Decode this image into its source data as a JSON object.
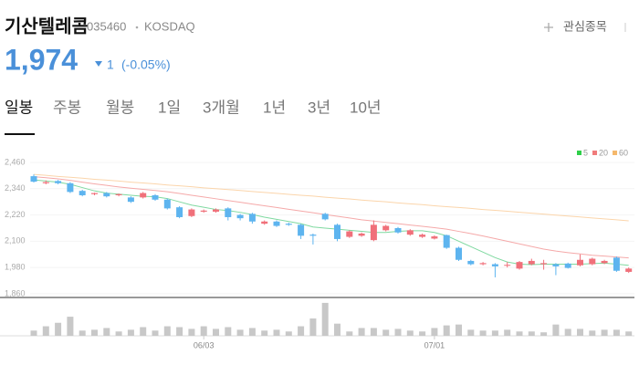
{
  "header": {
    "title": "기산텔레콤",
    "code": "035460",
    "market": "KOSDAQ",
    "watch": "관심종목",
    "price": "1,974",
    "change": "1",
    "change_pct": "(-0.05%)"
  },
  "tabs": [
    "일봉",
    "주봉",
    "월봉",
    "1일",
    "3개월",
    "1년",
    "3년",
    "10년"
  ],
  "chart_data": {
    "type": "candlestick",
    "up_color": "#f0707a",
    "down_color": "#5db4ef",
    "ylim": [
      1843,
      2535
    ],
    "yticks": [
      {
        "value": 2460,
        "label": "2,460"
      },
      {
        "value": 2340,
        "label": "2,340"
      },
      {
        "value": 2220,
        "label": "2,220"
      },
      {
        "value": 2100,
        "label": "2,100"
      },
      {
        "value": 1980,
        "label": "1,980"
      },
      {
        "value": 1860,
        "label": "1,860"
      }
    ],
    "categories": [
      null,
      null,
      null,
      null,
      null,
      null,
      null,
      null,
      null,
      null,
      null,
      null,
      null,
      null,
      "06/03",
      null,
      null,
      null,
      null,
      null,
      null,
      null,
      null,
      null,
      null,
      null,
      null,
      null,
      null,
      null,
      null,
      null,
      null,
      "07/01",
      null,
      null,
      null,
      null,
      null,
      null,
      null,
      null,
      null,
      null,
      null,
      null,
      null,
      null,
      null,
      null
    ],
    "open": [
      2397,
      2365,
      2375,
      2365,
      2330,
      2315,
      2320,
      2310,
      2300,
      2300,
      2310,
      2290,
      2255,
      2215,
      2235,
      2235,
      2250,
      2220,
      2225,
      2180,
      2190,
      2180,
      2175,
      2130,
      2225,
      2175,
      2120,
      2125,
      2105,
      2150,
      2160,
      2130,
      2120,
      2112,
      2128,
      2070,
      2010,
      1995,
      1995,
      1988,
      1975,
      1995,
      1995,
      1995,
      1998,
      1990,
      1995,
      2000,
      2025,
      1960
    ],
    "high": [
      2405,
      2378,
      2380,
      2370,
      2335,
      2322,
      2325,
      2318,
      2305,
      2325,
      2315,
      2295,
      2260,
      2250,
      2245,
      2250,
      2255,
      2225,
      2230,
      2195,
      2195,
      2185,
      2180,
      2135,
      2230,
      2180,
      2150,
      2140,
      2195,
      2175,
      2165,
      2155,
      2135,
      2127,
      2130,
      2075,
      2015,
      2005,
      2000,
      2005,
      2010,
      2020,
      2015,
      2000,
      2002,
      2040,
      2025,
      2015,
      2030,
      1980
    ],
    "low": [
      2368,
      2360,
      2360,
      2320,
      2305,
      2310,
      2300,
      2305,
      2275,
      2295,
      2285,
      2245,
      2205,
      2210,
      2230,
      2230,
      2195,
      2195,
      2180,
      2175,
      2165,
      2170,
      2110,
      2085,
      2195,
      2100,
      2115,
      2120,
      2100,
      2145,
      2135,
      2125,
      2115,
      2108,
      2065,
      2010,
      1990,
      1990,
      1935,
      1980,
      1970,
      1990,
      1970,
      1945,
      1975,
      1985,
      1990,
      1995,
      1960,
      1955
    ],
    "close": [
      2372,
      2370,
      2365,
      2325,
      2310,
      2320,
      2305,
      2315,
      2280,
      2320,
      2290,
      2250,
      2210,
      2245,
      2240,
      2245,
      2210,
      2205,
      2190,
      2190,
      2170,
      2175,
      2125,
      2125,
      2200,
      2110,
      2145,
      2135,
      2175,
      2170,
      2140,
      2150,
      2130,
      2122,
      2070,
      2015,
      1995,
      2000,
      1985,
      1992,
      2005,
      2010,
      2000,
      1985,
      1978,
      2015,
      2020,
      2010,
      1965,
      1975
    ],
    "volume": [
      6,
      11,
      15,
      22,
      6,
      7,
      9,
      5,
      7,
      10,
      6,
      11,
      10,
      8,
      11,
      8,
      10,
      7,
      9,
      6,
      7,
      5,
      11,
      20,
      38,
      14,
      5,
      9,
      9,
      7,
      8,
      6,
      5,
      9,
      12,
      13,
      7,
      6,
      6,
      7,
      5,
      5,
      4,
      13,
      8,
      8,
      6,
      7,
      7,
      5
    ],
    "volume_ylim": [
      0,
      40
    ],
    "series": [
      {
        "name": "5",
        "color": "#2fcf4a",
        "line_color": "#7fd9a0",
        "values": [
          2380,
          2375,
          2370,
          2360,
          2345,
          2330,
          2320,
          2315,
          2310,
          2305,
          2303,
          2295,
          2280,
          2265,
          2255,
          2245,
          2240,
          2232,
          2222,
          2210,
          2200,
          2190,
          2180,
          2165,
          2160,
          2155,
          2150,
          2145,
          2140,
          2140,
          2145,
          2148,
          2148,
          2140,
          2125,
          2100,
          2075,
          2050,
          2025,
          2005,
          1995,
          1993,
          1995,
          1995,
          1995,
          1995,
          1998,
          2000,
          1995,
          1990
        ]
      },
      {
        "name": "20",
        "color": "#f07b7b",
        "line_color": "#f5a9a9",
        "values": [
          2395,
          2390,
          2385,
          2378,
          2370,
          2362,
          2355,
          2348,
          2342,
          2337,
          2332,
          2326,
          2318,
          2310,
          2302,
          2294,
          2286,
          2278,
          2270,
          2262,
          2254,
          2246,
          2238,
          2230,
          2222,
          2214,
          2206,
          2198,
          2192,
          2186,
          2180,
          2174,
          2168,
          2162,
          2155,
          2145,
          2135,
          2124,
          2112,
          2100,
          2088,
          2076,
          2064,
          2055,
          2048,
          2042,
          2036,
          2032,
          2028,
          2024
        ]
      },
      {
        "name": "60",
        "color": "#f5b86b",
        "line_color": "#fbd5ab",
        "values": [
          2405,
          2401,
          2396,
          2392,
          2388,
          2383,
          2379,
          2375,
          2370,
          2366,
          2362,
          2357,
          2353,
          2349,
          2344,
          2340,
          2336,
          2332,
          2327,
          2323,
          2319,
          2314,
          2310,
          2306,
          2301,
          2297,
          2293,
          2288,
          2284,
          2280,
          2275,
          2271,
          2267,
          2262,
          2258,
          2254,
          2250,
          2245,
          2241,
          2237,
          2232,
          2228,
          2224,
          2219,
          2215,
          2211,
          2206,
          2202,
          2198,
          2193
        ]
      }
    ]
  }
}
